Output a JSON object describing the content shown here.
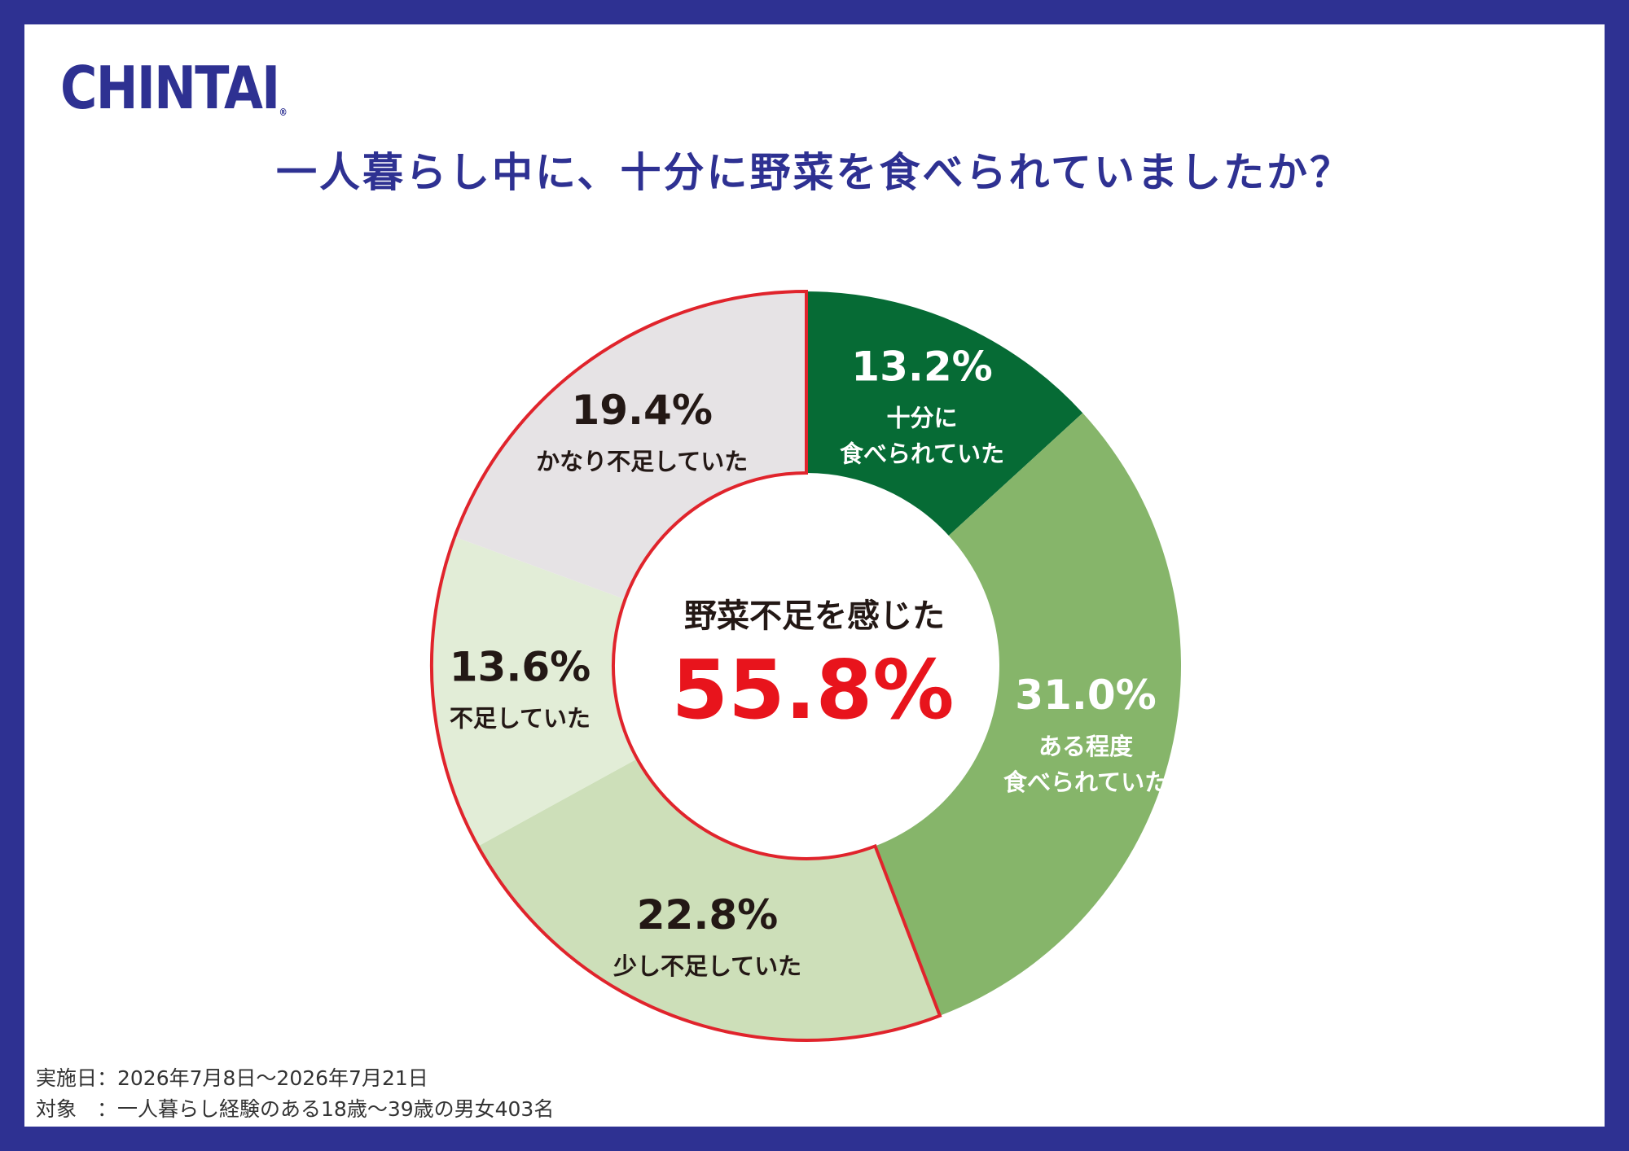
{
  "header": {
    "logo_text": "CHINTAI",
    "logo_mark": "®",
    "title": "一人暮らし中に、十分に野菜を食べられていましたか？"
  },
  "colors": {
    "frame": "#2e3192",
    "highlight": "#e8141c",
    "highlight_stroke": "#e0242c"
  },
  "chart_data": {
    "type": "pie",
    "title": "一人暮らし中に、十分に野菜を食べられていましたか？",
    "categories": [
      "十分に食べられていた",
      "ある程度食べられていた",
      "少し不足していた",
      "不足していた",
      "かなり不足していた"
    ],
    "values": [
      13.2,
      31.0,
      22.8,
      13.6,
      19.4
    ],
    "value_labels": [
      "13.2%",
      "31.0%",
      "22.8%",
      "13.6%",
      "19.4%"
    ],
    "label_lines": [
      [
        "十分に",
        "食べられていた"
      ],
      [
        "ある程度",
        "食べられていた"
      ],
      [
        "少し不足していた"
      ],
      [
        "不足していた"
      ],
      [
        "かなり不足していた"
      ]
    ],
    "colors": [
      "#066b35",
      "#86b56a",
      "#cddfb9",
      "#e2edd7",
      "#e6e3e5"
    ],
    "label_colors": [
      "#ffffff",
      "#ffffff",
      "#231815",
      "#231815",
      "#231815"
    ],
    "donut": true,
    "highlight_slices": [
      2,
      3,
      4
    ],
    "center_label": "野菜不足を感じた",
    "center_value": "55.8%"
  },
  "footer": {
    "date_line": "実施日：2026年7月8日〜2026年7月21日",
    "target_line": "対象　：一人暮らし経験のある18歳〜39歳の男女403名"
  }
}
